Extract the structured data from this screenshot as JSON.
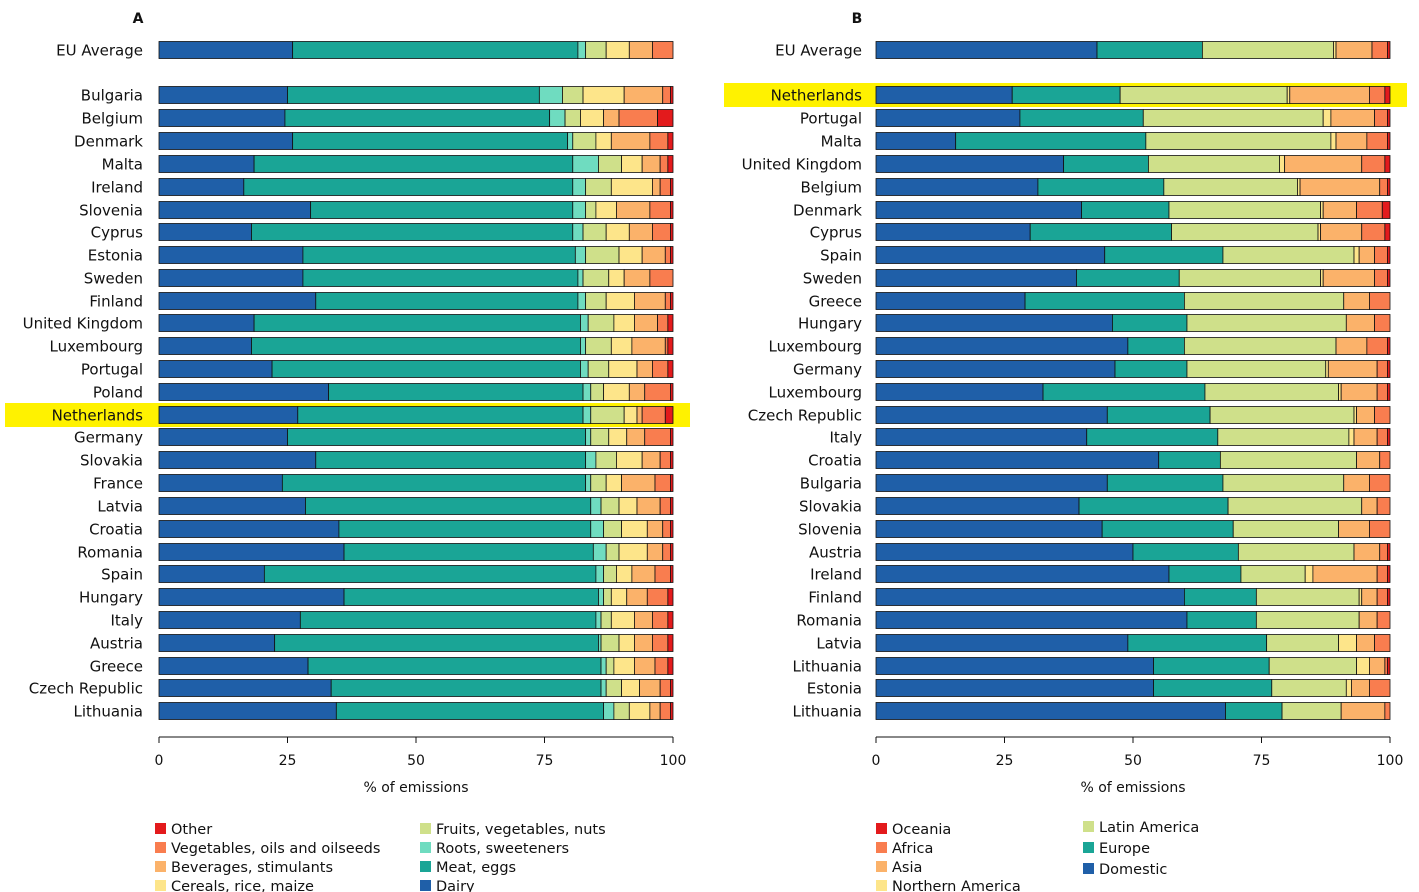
{
  "figure": {
    "xlabel": "% of emissions",
    "ticks": [
      0,
      25,
      50,
      75,
      100
    ]
  },
  "chart_data": [
    {
      "type": "bar",
      "stacked": "horizontal",
      "panel_label": "A",
      "xlabel": "% of emissions",
      "xlim": [
        0,
        100
      ],
      "highlight": "Netherlands",
      "highlight_color": "#fff200",
      "series": [
        {
          "name": "Dairy",
          "color": "#1f5fa8"
        },
        {
          "name": "Meat, eggs",
          "color": "#1aa596"
        },
        {
          "name": "Roots, sweeteners",
          "color": "#6fdcc0"
        },
        {
          "name": "Fruits, vegetables, nuts",
          "color": "#cfe08a"
        },
        {
          "name": "Cereals, rice, maize",
          "color": "#fde58a"
        },
        {
          "name": "Beverages, stimulants",
          "color": "#fbb26a"
        },
        {
          "name": "Vegetables, oils and oilseeds",
          "color": "#f97d4f"
        },
        {
          "name": "Other",
          "color": "#e31a1c"
        }
      ],
      "legend_order": [
        "Other",
        "Vegetables, oils and oilseeds",
        "Beverages, stimulants",
        "Cereals, rice, maize",
        "Fruits, vegetables, nuts",
        "Roots, sweeteners",
        "Meat, eggs",
        "Dairy"
      ],
      "categories": [
        "EU Average",
        "Bulgaria",
        "Belgium",
        "Denmark",
        "Malta",
        "Ireland",
        "Slovenia",
        "Cyprus",
        "Estonia",
        "Sweden",
        "Finland",
        "United Kingdom",
        "Luxembourg",
        "Portugal",
        "Poland",
        "Netherlands",
        "Germany",
        "Slovakia",
        "France",
        "Latvia",
        "Croatia",
        "Romania",
        "Spain",
        "Hungary",
        "Italy",
        "Austria",
        "Greece",
        "Czech Republic",
        "Lithuania"
      ],
      "values": [
        [
          26,
          55.5,
          1.5,
          4,
          4.5,
          4.5,
          4,
          0
        ],
        [
          25,
          49,
          4.5,
          4,
          8,
          7.5,
          1.5,
          0.5
        ],
        [
          24.5,
          51.5,
          3,
          3,
          4.5,
          3,
          7.5,
          3
        ],
        [
          26,
          53.5,
          1,
          4.5,
          3,
          7.5,
          3.5,
          1
        ],
        [
          18.5,
          62,
          5,
          4.5,
          4,
          3.5,
          1.5,
          1
        ],
        [
          16.5,
          64,
          2.5,
          5,
          8,
          1.5,
          2,
          0.5
        ],
        [
          29.5,
          51,
          2.5,
          2,
          4,
          6.5,
          4,
          0.5
        ],
        [
          18,
          62.5,
          2,
          4.5,
          4.5,
          4.5,
          3.5,
          0.5
        ],
        [
          28,
          53,
          2,
          6.5,
          4.5,
          4.5,
          1,
          0.5
        ],
        [
          28,
          53.5,
          1,
          5,
          3,
          5,
          4.5,
          0
        ],
        [
          30.5,
          51,
          1.5,
          4,
          5.5,
          6,
          1,
          0.5
        ],
        [
          18.5,
          63.5,
          1.5,
          5,
          4,
          4.5,
          2,
          1
        ],
        [
          18,
          64,
          1,
          5,
          4,
          6.5,
          0.5,
          1
        ],
        [
          22,
          60,
          1.5,
          4,
          5.5,
          3,
          3,
          1
        ],
        [
          33,
          49.5,
          1.5,
          2.5,
          5,
          3,
          5,
          0.5
        ],
        [
          27,
          55.5,
          1.5,
          6.5,
          2.5,
          1,
          4.5,
          1.5
        ],
        [
          25,
          58,
          1,
          3.5,
          3.5,
          3.5,
          5,
          0.5
        ],
        [
          30.5,
          52.5,
          2,
          4,
          5,
          3.5,
          2,
          0.5
        ],
        [
          24,
          59,
          1,
          3,
          3,
          6.5,
          3,
          0.5
        ],
        [
          28.5,
          55.5,
          2,
          3.5,
          3.5,
          4.5,
          2,
          0.5
        ],
        [
          35,
          49,
          2.5,
          3.5,
          5,
          3,
          1.5,
          0.5
        ],
        [
          36,
          48.5,
          2.5,
          2.5,
          5.5,
          3,
          1.5,
          0.5
        ],
        [
          20.5,
          64.5,
          1.5,
          2.5,
          3,
          4.5,
          3,
          0.5
        ],
        [
          36,
          49.5,
          1,
          1.5,
          3,
          4,
          4,
          1
        ],
        [
          27.5,
          57.5,
          1,
          2,
          4.5,
          3.5,
          3,
          1
        ],
        [
          22.5,
          63,
          0.5,
          3.5,
          3,
          3.5,
          3,
          1
        ],
        [
          29,
          57,
          1,
          1.5,
          4,
          4,
          2.5,
          1
        ],
        [
          33.5,
          52.5,
          1,
          3,
          3.5,
          4,
          2,
          0.5
        ],
        [
          34.5,
          52,
          2,
          3,
          4,
          2,
          2,
          0.5
        ]
      ]
    },
    {
      "type": "bar",
      "stacked": "horizontal",
      "panel_label": "B",
      "xlabel": "% of emissions",
      "xlim": [
        0,
        100
      ],
      "highlight": "Netherlands",
      "highlight_color": "#fff200",
      "series": [
        {
          "name": "Domestic",
          "color": "#1f5fa8"
        },
        {
          "name": "Europe",
          "color": "#1aa596"
        },
        {
          "name": "Latin America",
          "color": "#cfe08a"
        },
        {
          "name": "Northern America",
          "color": "#fde58a"
        },
        {
          "name": "Asia",
          "color": "#fbb26a"
        },
        {
          "name": "Africa",
          "color": "#f97d4f"
        },
        {
          "name": "Oceania",
          "color": "#e31a1c"
        }
      ],
      "legend_order_left": [
        "Oceania",
        "Africa",
        "Asia",
        "Northern America"
      ],
      "legend_order_right": [
        "Latin America",
        "Europe",
        "Domestic"
      ],
      "categories": [
        "EU Average",
        "Netherlands",
        "Portugal",
        "Malta",
        "United Kingdom",
        "Belgium",
        "Denmark",
        "Cyprus",
        "Spain",
        "Sweden",
        "Greece",
        "Hungary",
        "Luxembourg",
        "Germany",
        "Luxembourg",
        "Czech Republic",
        "Italy",
        "Croatia",
        "Bulgaria",
        "Slovakia",
        "Slovenia",
        "Austria",
        "Ireland",
        "Finland",
        "Romania",
        "Latvia",
        "Lithuania",
        "Estonia",
        "Lithuania"
      ],
      "values": [
        [
          43,
          20.5,
          25.5,
          0.5,
          7,
          3,
          0.5
        ],
        [
          26.5,
          21,
          32.5,
          0.5,
          15.5,
          3,
          1
        ],
        [
          28,
          24,
          35,
          1.5,
          8.5,
          2.5,
          0.5
        ],
        [
          15.5,
          37,
          36,
          1,
          6,
          4,
          0.5
        ],
        [
          36.5,
          16.5,
          25.5,
          1,
          15,
          4.5,
          1
        ],
        [
          31.5,
          24.5,
          26,
          0.5,
          15.5,
          1.5,
          0.5
        ],
        [
          40,
          17,
          29.5,
          0.5,
          6.5,
          5,
          1.5
        ],
        [
          30,
          27.5,
          28.5,
          0.5,
          8,
          4.5,
          1
        ],
        [
          44.5,
          23,
          25.5,
          1,
          3,
          2.5,
          0.5
        ],
        [
          39,
          20,
          27.5,
          0.5,
          10,
          2.5,
          0.5
        ],
        [
          29,
          31,
          31,
          0,
          5,
          4,
          0
        ],
        [
          46,
          14.5,
          31,
          0,
          5.5,
          3,
          0
        ],
        [
          49,
          11,
          29.5,
          0,
          6,
          4,
          0.5
        ],
        [
          46.5,
          14,
          27,
          0.5,
          9.5,
          2,
          0.5
        ],
        [
          32.5,
          31.5,
          26,
          0.5,
          7,
          2,
          0.5
        ],
        [
          45,
          20,
          28,
          0.5,
          3.5,
          3,
          0
        ],
        [
          41,
          25.5,
          25.5,
          1,
          4.5,
          2,
          0.5
        ],
        [
          55,
          12,
          26.5,
          0,
          4.5,
          2,
          0
        ],
        [
          45,
          22.5,
          23.5,
          0,
          5,
          4,
          0
        ],
        [
          39.5,
          29,
          26,
          0,
          3,
          2.5,
          0
        ],
        [
          44,
          25.5,
          20.5,
          0,
          6,
          4,
          0
        ],
        [
          50,
          20.5,
          22.5,
          0,
          5,
          1.5,
          0.5
        ],
        [
          57,
          14,
          12.5,
          1.5,
          12.5,
          2,
          0.5
        ],
        [
          60,
          14,
          20,
          0.5,
          3,
          2,
          0.5
        ],
        [
          60.5,
          13.5,
          20,
          0,
          3.5,
          2.5,
          0
        ],
        [
          49,
          27,
          14,
          3.5,
          3.5,
          3,
          0
        ],
        [
          54,
          22.5,
          17,
          2.5,
          3,
          0.5,
          0.5
        ],
        [
          54,
          23,
          14.5,
          1,
          3.5,
          4,
          0
        ],
        [
          68,
          11,
          11.5,
          0,
          8.5,
          1,
          0
        ]
      ]
    }
  ]
}
